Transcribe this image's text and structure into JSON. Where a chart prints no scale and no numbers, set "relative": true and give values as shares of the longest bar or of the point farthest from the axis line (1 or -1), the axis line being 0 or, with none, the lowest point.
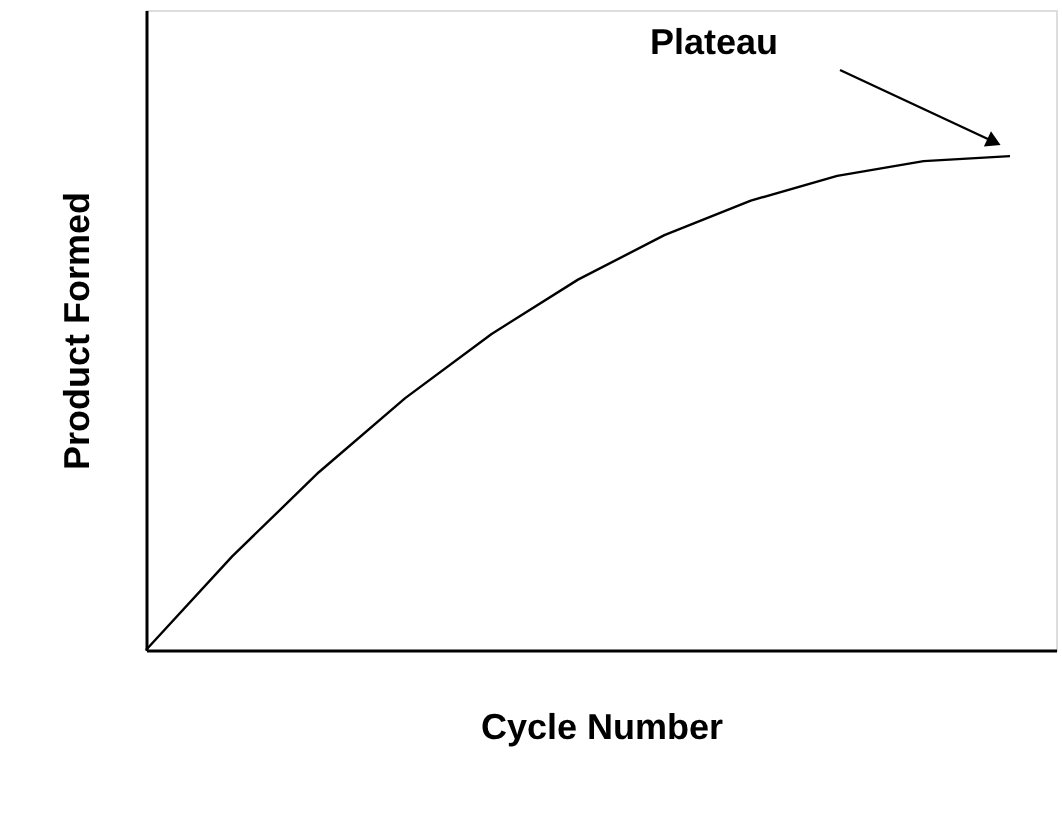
{
  "chart_data": {
    "type": "line",
    "xlabel": "Cycle Number",
    "ylabel": "Product Formed",
    "relative": true,
    "categories": [
      null,
      null,
      null,
      null,
      null,
      null,
      null,
      null,
      null,
      null,
      null
    ],
    "series": [
      {
        "color": "#000000",
        "values": [
          0,
          0.19,
          0.36,
          0.51,
          0.64,
          0.75,
          0.84,
          0.91,
          0.96,
          0.99,
          1.0
        ]
      }
    ],
    "annotations": [
      "Plateau"
    ]
  }
}
